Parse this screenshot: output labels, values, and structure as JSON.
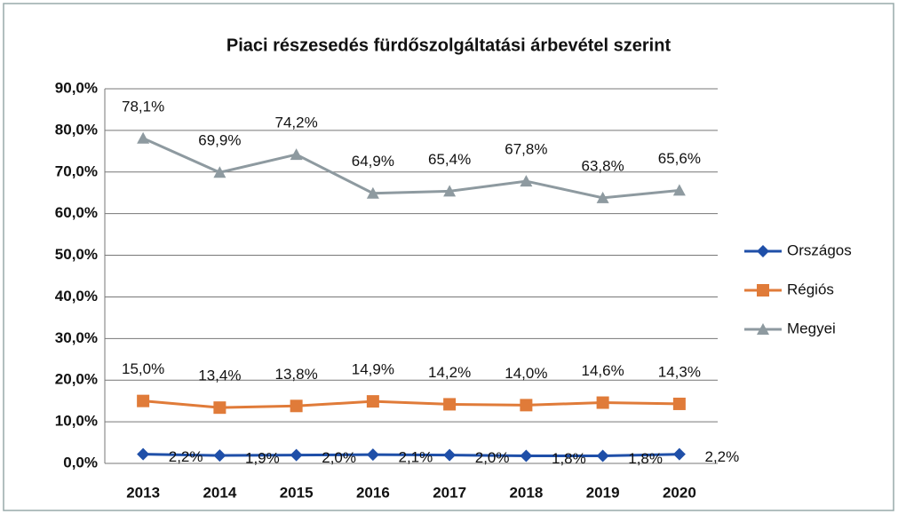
{
  "chart_data": {
    "type": "line",
    "title": "Piaci részesedés fürdőszolgáltatási  árbevétel szerint",
    "categories": [
      "2013",
      "2014",
      "2015",
      "2016",
      "2017",
      "2018",
      "2019",
      "2020"
    ],
    "series": [
      {
        "name": "Országos",
        "color": "#1f4fa8",
        "marker": "diamond",
        "values": [
          2.2,
          1.9,
          2.0,
          2.1,
          2.0,
          1.8,
          1.8,
          2.2
        ],
        "value_labels": [
          "2,2%",
          "1,9%",
          "2,0%",
          "2,1%",
          "2,0%",
          "1,8%",
          "1,8%",
          "2,2%"
        ]
      },
      {
        "name": "Régiós",
        "color": "#e07b39",
        "marker": "square",
        "values": [
          15.0,
          13.4,
          13.8,
          14.9,
          14.2,
          14.0,
          14.6,
          14.3
        ],
        "value_labels": [
          "15,0%",
          "13,4%",
          "13,8%",
          "14,9%",
          "14,2%",
          "14,0%",
          "14,6%",
          "14,3%"
        ]
      },
      {
        "name": "Megyei",
        "color": "#8e9aa0",
        "marker": "triangle",
        "values": [
          78.1,
          69.9,
          74.2,
          64.9,
          65.4,
          67.8,
          63.8,
          65.6
        ],
        "value_labels": [
          "78,1%",
          "69,9%",
          "74,2%",
          "64,9%",
          "65,4%",
          "67,8%",
          "63,8%",
          "65,6%"
        ]
      }
    ],
    "ylim": [
      0,
      90
    ],
    "yticks": [
      {
        "value": 0,
        "label": "0,0%"
      },
      {
        "value": 10,
        "label": "10,0%"
      },
      {
        "value": 20,
        "label": "20,0%"
      },
      {
        "value": 30,
        "label": "30,0%"
      },
      {
        "value": 40,
        "label": "40,0%"
      },
      {
        "value": 50,
        "label": "50,0%"
      },
      {
        "value": 60,
        "label": "60,0%"
      },
      {
        "value": 70,
        "label": "70,0%"
      },
      {
        "value": 80,
        "label": "80,0%"
      },
      {
        "value": 90,
        "label": "90,0%"
      }
    ],
    "grid": true,
    "legend": "right"
  }
}
